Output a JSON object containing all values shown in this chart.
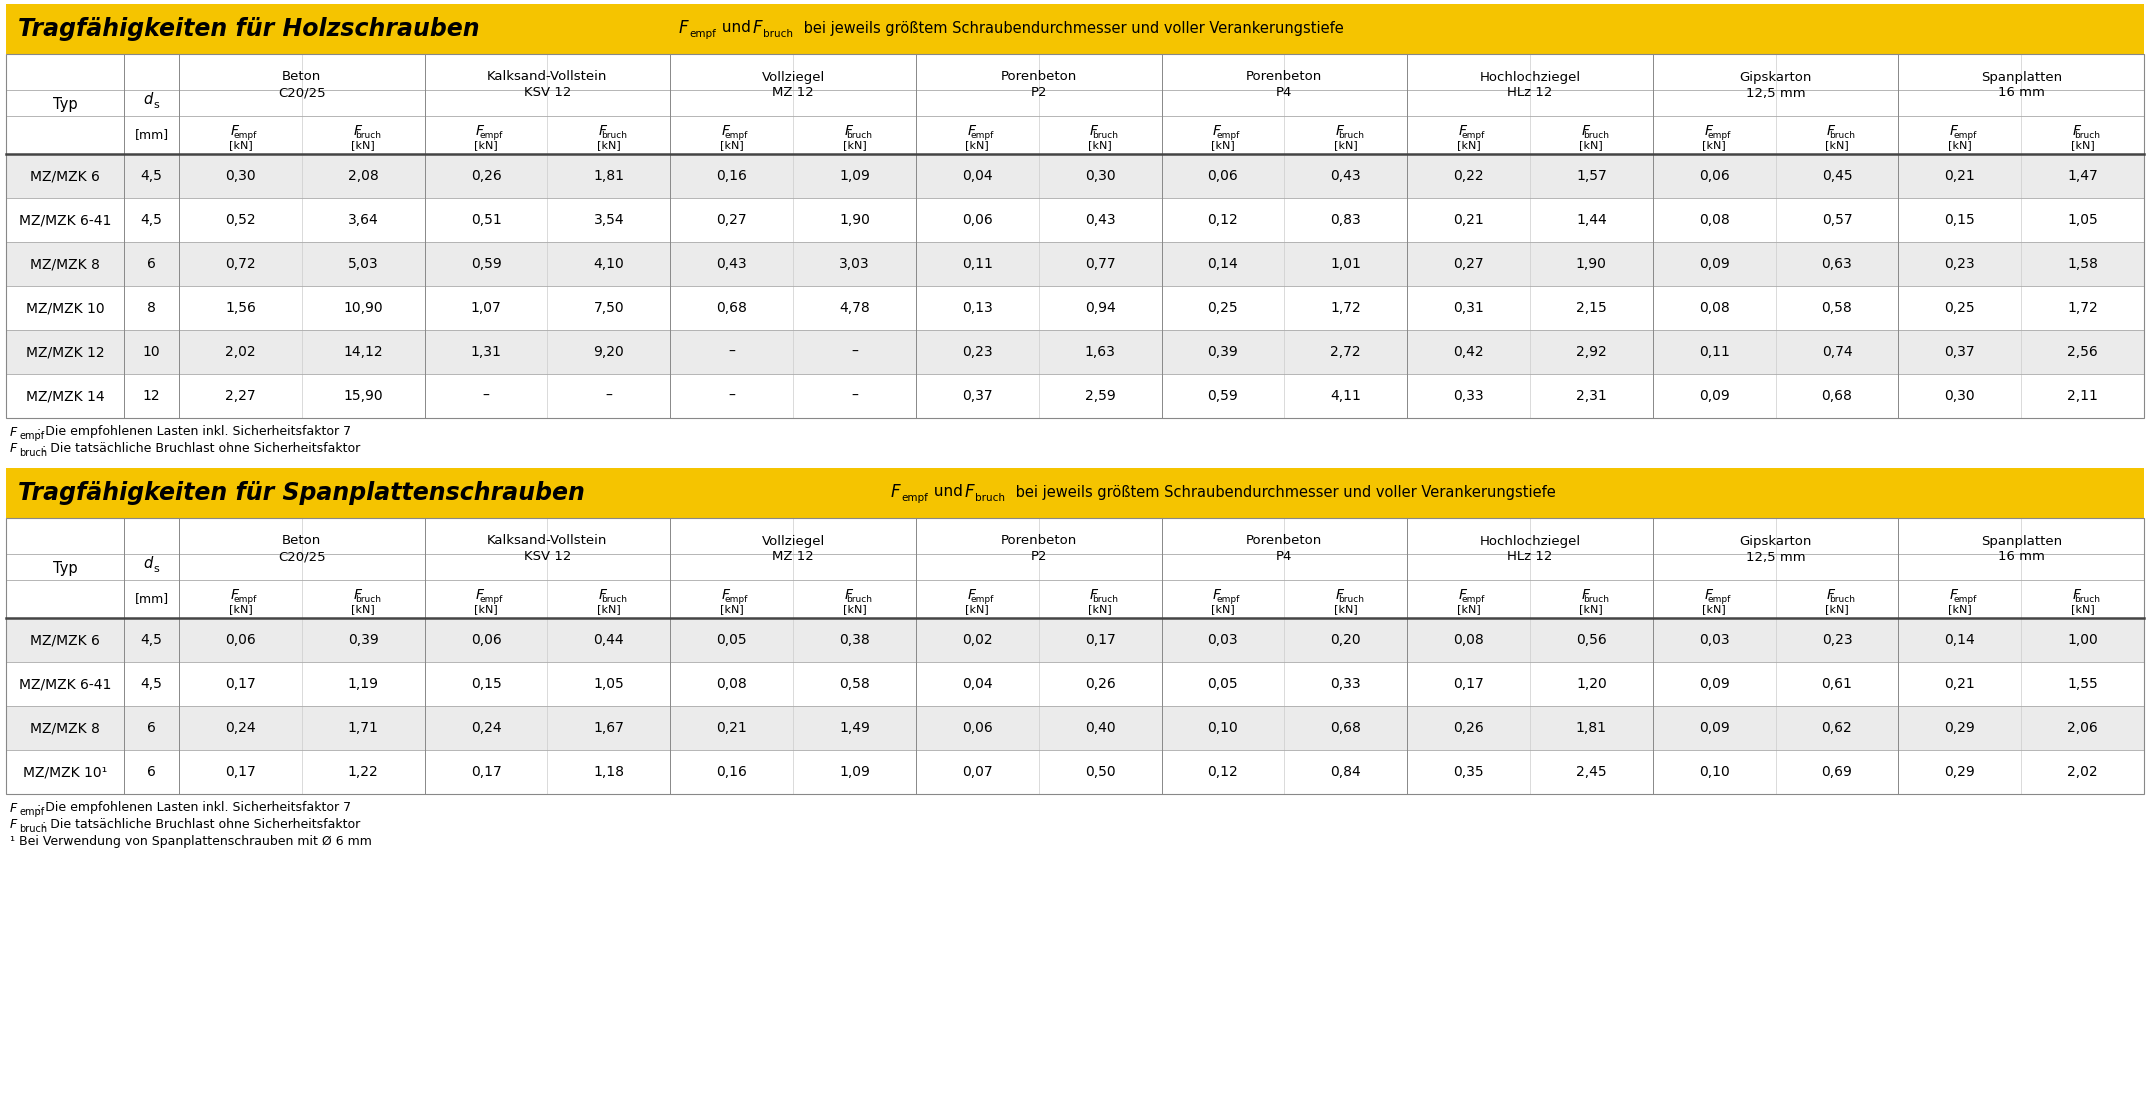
{
  "yellow": "#F5C400",
  "white": "#FFFFFF",
  "light_gray": "#EBEBEB",
  "black": "#000000",
  "group_names": [
    "Beton\nC20/25",
    "Kalksand-Vollstein\nKSV 12",
    "Vollziegel\nMZ 12",
    "Porenbeton\nP2",
    "Porenbeton\nP4",
    "Hochlochziegel\nHLz 12",
    "Gipskarton\n12,5 mm",
    "Spanplatten\n16 mm"
  ],
  "holz_rows": [
    [
      "MZ/MZK 6",
      "4,5",
      "0,30",
      "2,08",
      "0,26",
      "1,81",
      "0,16",
      "1,09",
      "0,04",
      "0,30",
      "0,06",
      "0,43",
      "0,22",
      "1,57",
      "0,06",
      "0,45",
      "0,21",
      "1,47"
    ],
    [
      "MZ/MZK 6-41",
      "4,5",
      "0,52",
      "3,64",
      "0,51",
      "3,54",
      "0,27",
      "1,90",
      "0,06",
      "0,43",
      "0,12",
      "0,83",
      "0,21",
      "1,44",
      "0,08",
      "0,57",
      "0,15",
      "1,05"
    ],
    [
      "MZ/MZK 8",
      "6",
      "0,72",
      "5,03",
      "0,59",
      "4,10",
      "0,43",
      "3,03",
      "0,11",
      "0,77",
      "0,14",
      "1,01",
      "0,27",
      "1,90",
      "0,09",
      "0,63",
      "0,23",
      "1,58"
    ],
    [
      "MZ/MZK 10",
      "8",
      "1,56",
      "10,90",
      "1,07",
      "7,50",
      "0,68",
      "4,78",
      "0,13",
      "0,94",
      "0,25",
      "1,72",
      "0,31",
      "2,15",
      "0,08",
      "0,58",
      "0,25",
      "1,72"
    ],
    [
      "MZ/MZK 12",
      "10",
      "2,02",
      "14,12",
      "1,31",
      "9,20",
      "–",
      "–",
      "0,23",
      "1,63",
      "0,39",
      "2,72",
      "0,42",
      "2,92",
      "0,11",
      "0,74",
      "0,37",
      "2,56"
    ],
    [
      "MZ/MZK 14",
      "12",
      "2,27",
      "15,90",
      "–",
      "–",
      "–",
      "–",
      "0,37",
      "2,59",
      "0,59",
      "4,11",
      "0,33",
      "2,31",
      "0,09",
      "0,68",
      "0,30",
      "2,11"
    ]
  ],
  "span_rows": [
    [
      "MZ/MZK 6",
      "4,5",
      "0,06",
      "0,39",
      "0,06",
      "0,44",
      "0,05",
      "0,38",
      "0,02",
      "0,17",
      "0,03",
      "0,20",
      "0,08",
      "0,56",
      "0,03",
      "0,23",
      "0,14",
      "1,00"
    ],
    [
      "MZ/MZK 6-41",
      "4,5",
      "0,17",
      "1,19",
      "0,15",
      "1,05",
      "0,08",
      "0,58",
      "0,04",
      "0,26",
      "0,05",
      "0,33",
      "0,17",
      "1,20",
      "0,09",
      "0,61",
      "0,21",
      "1,55"
    ],
    [
      "MZ/MZK 8",
      "6",
      "0,24",
      "1,71",
      "0,24",
      "1,67",
      "0,21",
      "1,49",
      "0,06",
      "0,40",
      "0,10",
      "0,68",
      "0,26",
      "1,81",
      "0,09",
      "0,62",
      "0,29",
      "2,06"
    ],
    [
      "MZ/MZK 10¹",
      "6",
      "0,17",
      "1,22",
      "0,17",
      "1,18",
      "0,16",
      "1,09",
      "0,07",
      "0,50",
      "0,12",
      "0,84",
      "0,35",
      "2,45",
      "0,10",
      "0,69",
      "0,29",
      "2,02"
    ]
  ],
  "title1_bold": "Tragfähigkeiten für Holzschrauben",
  "title2_bold": "Tragfähigkeiten für Spanplattenschrauben",
  "title_suffix": " bei jeweils größtem Schraubendurchmesser und voller Verankerungstiefe",
  "fn1": ": Die empfohlenen Lasten inkl. Sicherheitsfaktor 7",
  "fn2": ": Die tatsächliche Bruchlast ohne Sicherheitsfaktor",
  "fn3": "¹ Bei Verwendung von Spanplattenschrauben mit Ø 6 mm"
}
